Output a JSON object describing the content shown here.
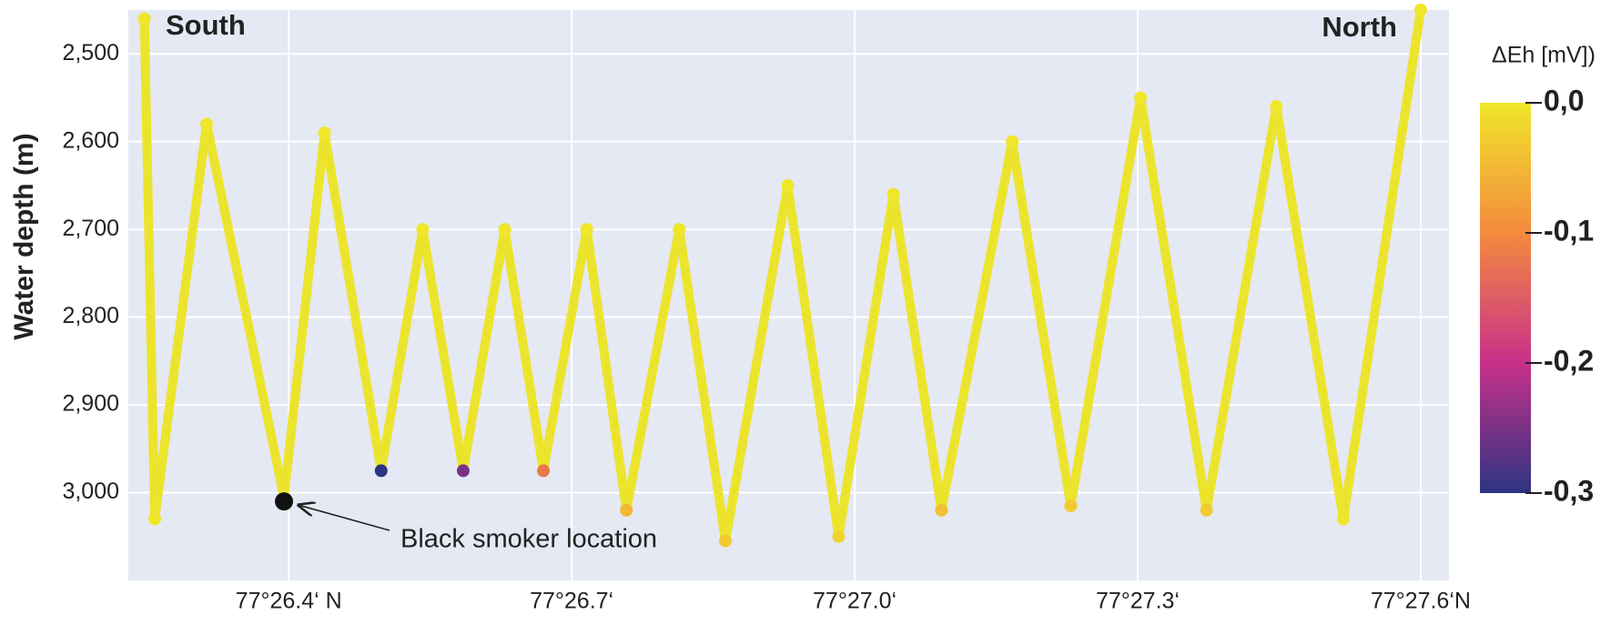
{
  "chart_data": {
    "type": "line",
    "y_label": "Water depth  (m)",
    "annotations": [
      {
        "text": "South"
      },
      {
        "text": "North"
      }
    ],
    "point_annotation": {
      "text": "Black smoker location",
      "x": 26.395,
      "y": 3010
    },
    "x": [
      26.247,
      26.258,
      26.313,
      26.395,
      26.438,
      26.498,
      26.542,
      26.585,
      26.629,
      26.67,
      26.716,
      26.758,
      26.814,
      26.863,
      26.929,
      26.983,
      27.041,
      27.092,
      27.167,
      27.229,
      27.303,
      27.373,
      27.447,
      27.518,
      27.6
    ],
    "series": [
      {
        "color": "#ece42c",
        "values": [
          2460,
          3030,
          2580,
          3005,
          2590,
          2975,
          2700,
          2975,
          2700,
          2975,
          2700,
          3020,
          2700,
          3055,
          2650,
          3050,
          2660,
          3020,
          2600,
          3015,
          2550,
          3020,
          2560,
          3030,
          2450
        ],
        "color_values": [
          0,
          0,
          0,
          0,
          0,
          -0.3,
          0,
          -0.25,
          0,
          -0.12,
          0,
          -0.05,
          0,
          -0.03,
          0,
          -0.02,
          0,
          -0.04,
          0,
          -0.03,
          0,
          -0.03,
          0,
          0,
          0
        ]
      }
    ],
    "xlim": [
      26.23,
      27.63
    ],
    "xticks": [
      {
        "value": 26.4,
        "label": "77°26.4‘ N"
      },
      {
        "value": 26.7,
        "label": "77°26.7‘"
      },
      {
        "value": 27.0,
        "label": "77°27.0‘"
      },
      {
        "value": 27.3,
        "label": "77°27.3‘"
      },
      {
        "value": 27.6,
        "label": "77°27.6‘N"
      }
    ],
    "ylim": [
      3100,
      2450
    ],
    "yticks": [
      {
        "value": 2500,
        "label": "2,500"
      },
      {
        "value": 2600,
        "label": "2,600"
      },
      {
        "value": 2700,
        "label": "2,700"
      },
      {
        "value": 2800,
        "label": "2,800"
      },
      {
        "value": 2900,
        "label": "2,900"
      },
      {
        "value": 3000,
        "label": "3,000"
      }
    ],
    "grid": true,
    "colorbar": {
      "title": "ΔEh [mV])",
      "clim": [
        -0.3,
        0
      ],
      "colormap": [
        "#2d3482",
        "#c8308a",
        "#f48a3e",
        "#f0e62a"
      ],
      "ticks": [
        {
          "value": 0,
          "label": "0,0"
        },
        {
          "value": -0.1,
          "label": "-0,1"
        },
        {
          "value": -0.2,
          "label": "-0,2"
        },
        {
          "value": -0.3,
          "label": "-0,3"
        }
      ]
    }
  }
}
